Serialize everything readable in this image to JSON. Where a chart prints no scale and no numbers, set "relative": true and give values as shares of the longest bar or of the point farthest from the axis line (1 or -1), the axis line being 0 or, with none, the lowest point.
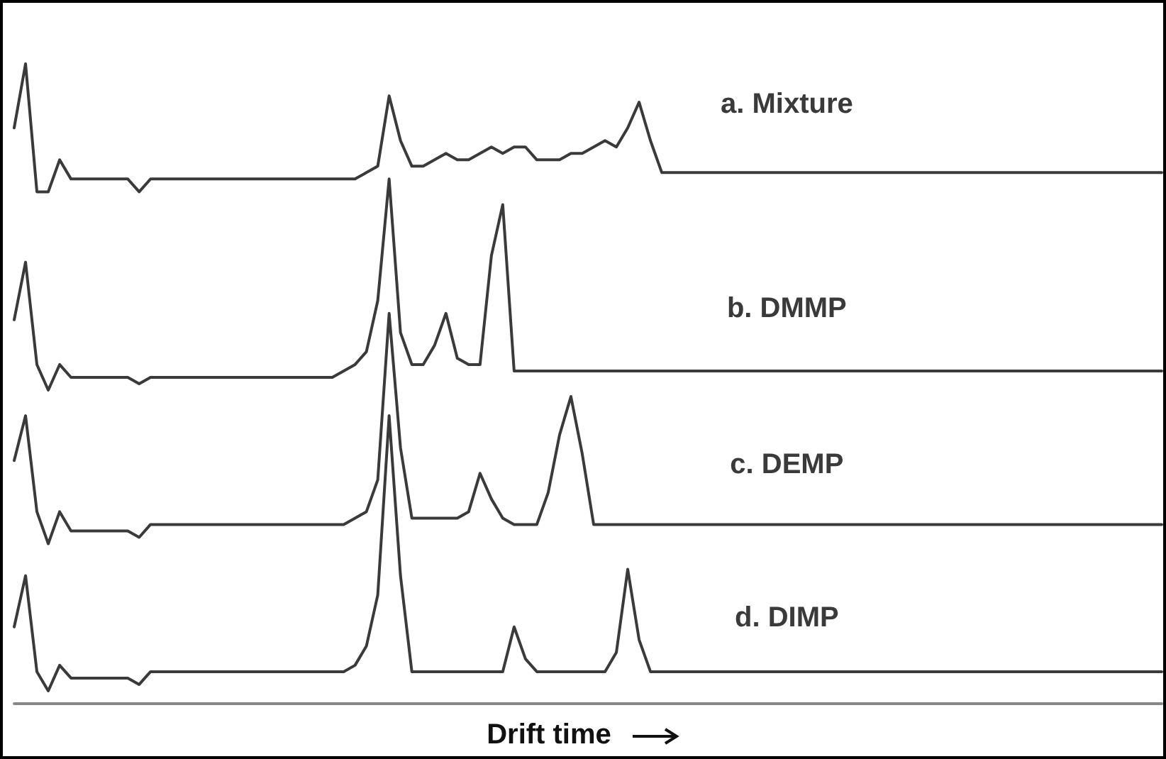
{
  "chart_data": {
    "type": "line",
    "relative": true,
    "xlabel": "Drift time",
    "legend": false,
    "grid": false,
    "marker": "none",
    "line_style": "solid",
    "tick_labels": false,
    "categories": [
      null,
      null,
      null,
      null,
      null,
      null,
      null,
      null,
      null,
      null,
      null,
      null,
      null,
      null,
      null,
      null,
      null,
      null,
      null,
      null,
      null,
      null,
      null,
      null,
      null,
      null,
      null,
      null,
      null,
      null,
      null,
      null,
      null,
      null,
      null,
      null,
      null,
      null,
      null,
      null,
      null,
      null,
      null,
      null,
      null,
      null,
      null,
      null,
      null,
      null,
      null,
      null,
      null,
      null,
      null,
      null,
      null,
      null,
      null,
      null,
      null,
      null,
      null,
      null,
      null,
      null,
      null,
      null,
      null,
      null,
      null,
      null,
      null,
      null,
      null,
      null,
      null,
      null,
      null,
      null,
      null,
      null,
      null,
      null,
      null,
      null,
      null,
      null,
      null,
      null,
      null,
      null,
      null,
      null,
      null,
      null,
      null,
      null,
      null,
      null,
      null,
      null
    ],
    "series": [
      {
        "name": "a. Mixture",
        "color": "#3a3a3a",
        "values": [
          0.9,
          1,
          0.8,
          0.8,
          0.85,
          0.82,
          0.82,
          0.82,
          0.82,
          0.82,
          0.82,
          0.8,
          0.82,
          0.82,
          0.82,
          0.82,
          0.82,
          0.82,
          0.82,
          0.82,
          0.82,
          0.82,
          0.82,
          0.82,
          0.82,
          0.82,
          0.82,
          0.82,
          0.82,
          0.82,
          0.82,
          0.83,
          0.84,
          0.95,
          0.88,
          0.84,
          0.84,
          0.85,
          0.86,
          0.85,
          0.85,
          0.86,
          0.87,
          0.86,
          0.87,
          0.87,
          0.85,
          0.85,
          0.85,
          0.86,
          0.86,
          0.87,
          0.88,
          0.87,
          0.9,
          0.94,
          0.88,
          0.83,
          0.83,
          0.83,
          0.83,
          0.83,
          0.83,
          0.83,
          0.83,
          0.83,
          0.83,
          0.83,
          0.83,
          0.83,
          0.83,
          0.83,
          0.83,
          0.83,
          0.83,
          0.83,
          0.83,
          0.83,
          0.83,
          0.83,
          0.83,
          0.83,
          0.83,
          0.83,
          0.83,
          0.83,
          0.83,
          0.83,
          0.83,
          0.83,
          0.83,
          0.83,
          0.83,
          0.83,
          0.83,
          0.83,
          0.83,
          0.83,
          0.83,
          0.83,
          0.83,
          0.83
        ]
      },
      {
        "name": "b. DMMP",
        "color": "#3a3a3a",
        "values": [
          0.6,
          0.69,
          0.53,
          0.49,
          0.53,
          0.51,
          0.51,
          0.51,
          0.51,
          0.51,
          0.51,
          0.5,
          0.51,
          0.51,
          0.51,
          0.51,
          0.51,
          0.51,
          0.51,
          0.51,
          0.51,
          0.51,
          0.51,
          0.51,
          0.51,
          0.51,
          0.51,
          0.51,
          0.51,
          0.52,
          0.53,
          0.55,
          0.63,
          0.82,
          0.58,
          0.53,
          0.53,
          0.56,
          0.61,
          0.54,
          0.53,
          0.53,
          0.7,
          0.78,
          0.52,
          0.52,
          0.52,
          0.52,
          0.52,
          0.52,
          0.52,
          0.52,
          0.52,
          0.52,
          0.52,
          0.52,
          0.52,
          0.52,
          0.52,
          0.52,
          0.52,
          0.52,
          0.52,
          0.52,
          0.52,
          0.52,
          0.52,
          0.52,
          0.52,
          0.52,
          0.52,
          0.52,
          0.52,
          0.52,
          0.52,
          0.52,
          0.52,
          0.52,
          0.52,
          0.52,
          0.52,
          0.52,
          0.52,
          0.52,
          0.52,
          0.52,
          0.52,
          0.52,
          0.52,
          0.52,
          0.52,
          0.52,
          0.52,
          0.52,
          0.52,
          0.52,
          0.52,
          0.52,
          0.52,
          0.52,
          0.52,
          0.52
        ]
      },
      {
        "name": "c. DEMP",
        "color": "#3a3a3a",
        "values": [
          0.38,
          0.45,
          0.3,
          0.25,
          0.3,
          0.27,
          0.27,
          0.27,
          0.27,
          0.27,
          0.27,
          0.26,
          0.28,
          0.28,
          0.28,
          0.28,
          0.28,
          0.28,
          0.28,
          0.28,
          0.28,
          0.28,
          0.28,
          0.28,
          0.28,
          0.28,
          0.28,
          0.28,
          0.28,
          0.28,
          0.29,
          0.3,
          0.35,
          0.61,
          0.4,
          0.29,
          0.29,
          0.29,
          0.29,
          0.29,
          0.3,
          0.36,
          0.32,
          0.29,
          0.28,
          0.28,
          0.28,
          0.33,
          0.42,
          0.48,
          0.39,
          0.28,
          0.28,
          0.28,
          0.28,
          0.28,
          0.28,
          0.28,
          0.28,
          0.28,
          0.28,
          0.28,
          0.28,
          0.28,
          0.28,
          0.28,
          0.28,
          0.28,
          0.28,
          0.28,
          0.28,
          0.28,
          0.28,
          0.28,
          0.28,
          0.28,
          0.28,
          0.28,
          0.28,
          0.28,
          0.28,
          0.28,
          0.28,
          0.28,
          0.28,
          0.28,
          0.28,
          0.28,
          0.28,
          0.28,
          0.28,
          0.28,
          0.28,
          0.28,
          0.28,
          0.28,
          0.28,
          0.28,
          0.28,
          0.28,
          0.28,
          0.28
        ]
      },
      {
        "name": "d. DIMP",
        "color": "#3a3a3a",
        "values": [
          0.12,
          0.2,
          0.05,
          0.02,
          0.06,
          0.04,
          0.04,
          0.04,
          0.04,
          0.04,
          0.04,
          0.03,
          0.05,
          0.05,
          0.05,
          0.05,
          0.05,
          0.05,
          0.05,
          0.05,
          0.05,
          0.05,
          0.05,
          0.05,
          0.05,
          0.05,
          0.05,
          0.05,
          0.05,
          0.05,
          0.06,
          0.09,
          0.17,
          0.45,
          0.2,
          0.05,
          0.05,
          0.05,
          0.05,
          0.05,
          0.05,
          0.05,
          0.05,
          0.05,
          0.12,
          0.07,
          0.05,
          0.05,
          0.05,
          0.05,
          0.05,
          0.05,
          0.05,
          0.08,
          0.21,
          0.1,
          0.05,
          0.05,
          0.05,
          0.05,
          0.05,
          0.05,
          0.05,
          0.05,
          0.05,
          0.05,
          0.05,
          0.05,
          0.05,
          0.05,
          0.05,
          0.05,
          0.05,
          0.05,
          0.05,
          0.05,
          0.05,
          0.05,
          0.05,
          0.05,
          0.05,
          0.05,
          0.05,
          0.05,
          0.05,
          0.05,
          0.05,
          0.05,
          0.05,
          0.05,
          0.05,
          0.05,
          0.05,
          0.05,
          0.05,
          0.05,
          0.05,
          0.05,
          0.05,
          0.05,
          0.05,
          0.05
        ]
      }
    ]
  }
}
